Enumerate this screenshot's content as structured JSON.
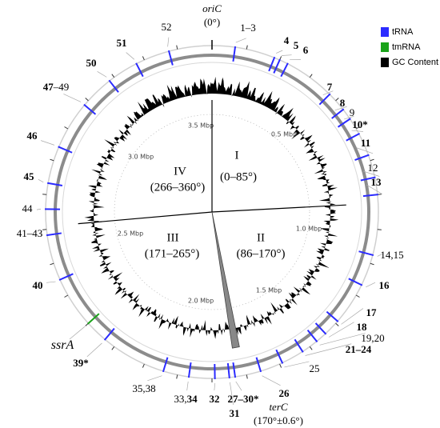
{
  "header": {
    "origin": "oriC",
    "origin_angle": "(0°)",
    "terminus": "terC",
    "terminus_angle": "(170°±0.6°)"
  },
  "legend": [
    {
      "label": "tRNA",
      "color": "#2b2bff"
    },
    {
      "label": "tmRNA",
      "color": "#1aa31a"
    },
    {
      "label": "GC Content",
      "color": "#000000"
    }
  ],
  "scale_labels": [
    "0.5 Mbp",
    "1.0 Mbp",
    "1.5 Mbp",
    "2.0 Mbp",
    "2.5 Mbp",
    "3.0 Mbp",
    "3.5 Mbp"
  ],
  "sectors": [
    {
      "numeral": "I",
      "range": "(0–85°)"
    },
    {
      "numeral": "II",
      "range": "(86–170°)"
    },
    {
      "numeral": "III",
      "range": "(171–265°)"
    },
    {
      "numeral": "IV",
      "range": "(266–360°)"
    }
  ],
  "genes": [
    {
      "parts": [
        {
          "text": "1–3",
          "bold": false
        }
      ]
    },
    {
      "parts": [
        {
          "text": "4",
          "bold": true
        }
      ]
    },
    {
      "parts": [
        {
          "text": "5",
          "bold": true
        }
      ]
    },
    {
      "parts": [
        {
          "text": "6",
          "bold": true
        }
      ]
    },
    {
      "parts": [
        {
          "text": "7",
          "bold": true
        }
      ]
    },
    {
      "parts": [
        {
          "text": "8",
          "bold": true
        }
      ]
    },
    {
      "parts": [
        {
          "text": "9",
          "bold": false
        }
      ]
    },
    {
      "parts": [
        {
          "text": "10*",
          "bold": true
        }
      ]
    },
    {
      "parts": [
        {
          "text": "11",
          "bold": true
        }
      ]
    },
    {
      "parts": [
        {
          "text": "12",
          "bold": false
        }
      ]
    },
    {
      "parts": [
        {
          "text": "13",
          "bold": true
        }
      ]
    },
    {
      "parts": [
        {
          "text": "14,15",
          "bold": false
        }
      ]
    },
    {
      "parts": [
        {
          "text": "16",
          "bold": true
        }
      ]
    },
    {
      "parts": [
        {
          "text": "17",
          "bold": true
        }
      ]
    },
    {
      "parts": [
        {
          "text": "18",
          "bold": true
        }
      ]
    },
    {
      "parts": [
        {
          "text": "19,20",
          "bold": false
        }
      ]
    },
    {
      "parts": [
        {
          "text": "21–24",
          "bold": true
        }
      ]
    },
    {
      "parts": [
        {
          "text": "25",
          "bold": false
        }
      ]
    },
    {
      "parts": [
        {
          "text": "26",
          "bold": true
        }
      ]
    },
    {
      "parts": [
        {
          "text": "27–30*",
          "bold": true
        }
      ]
    },
    {
      "parts": [
        {
          "text": "31",
          "bold": true
        }
      ]
    },
    {
      "parts": [
        {
          "text": "32",
          "bold": true
        }
      ]
    },
    {
      "parts": [
        {
          "text": "33,",
          "bold": false
        },
        {
          "text": "34",
          "bold": true
        }
      ]
    },
    {
      "parts": [
        {
          "text": "35,38",
          "bold": false
        }
      ]
    },
    {
      "parts": [
        {
          "text": "39*",
          "bold": true
        }
      ]
    },
    {
      "parts": [
        {
          "text": "ssrA",
          "bold": false,
          "italic": true
        }
      ]
    },
    {
      "parts": [
        {
          "text": "40",
          "bold": true
        }
      ]
    },
    {
      "parts": [
        {
          "text": "41–43",
          "bold": false
        }
      ]
    },
    {
      "parts": [
        {
          "text": "44",
          "bold": false
        }
      ]
    },
    {
      "parts": [
        {
          "text": "45",
          "bold": true
        }
      ]
    },
    {
      "parts": [
        {
          "text": "46",
          "bold": true
        }
      ]
    },
    {
      "parts": [
        {
          "text": "47",
          "bold": true
        },
        {
          "text": "–49",
          "bold": false
        }
      ]
    },
    {
      "parts": [
        {
          "text": "50",
          "bold": true
        }
      ]
    },
    {
      "parts": [
        {
          "text": "51",
          "bold": true
        }
      ]
    },
    {
      "parts": [
        {
          "text": "52",
          "bold": false
        }
      ]
    }
  ]
}
